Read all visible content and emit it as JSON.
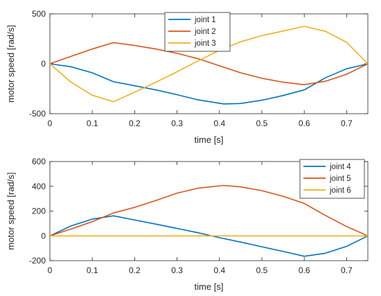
{
  "chart_data": [
    {
      "type": "line",
      "title": "",
      "xlabel": "time  [s]",
      "ylabel": "motor speed  [rad/s]",
      "xlim": [
        0,
        0.75
      ],
      "ylim": [
        -500,
        500
      ],
      "xticks": [
        "0",
        "0.1",
        "0.2",
        "0.3",
        "0.4",
        "0.5",
        "0.6",
        "0.7"
      ],
      "yticks": [
        "-500",
        "0",
        "500"
      ],
      "legend_position": "top-center",
      "grid": false,
      "series": [
        {
          "name": "joint 1",
          "color": "#0072BD",
          "points": [
            [
              0,
              0
            ],
            [
              0.05,
              -30
            ],
            [
              0.1,
              -90
            ],
            [
              0.15,
              -180
            ],
            [
              0.2,
              -220
            ],
            [
              0.25,
              -262
            ],
            [
              0.3,
              -310
            ],
            [
              0.35,
              -362
            ],
            [
              0.41,
              -402
            ],
            [
              0.45,
              -398
            ],
            [
              0.5,
              -365
            ],
            [
              0.55,
              -318
            ],
            [
              0.6,
              -262
            ],
            [
              0.65,
              -140
            ],
            [
              0.7,
              -50
            ],
            [
              0.75,
              0
            ]
          ]
        },
        {
          "name": "joint 2",
          "color": "#D95319",
          "points": [
            [
              0,
              0
            ],
            [
              0.05,
              75
            ],
            [
              0.1,
              148
            ],
            [
              0.15,
              212
            ],
            [
              0.2,
              183
            ],
            [
              0.25,
              148
            ],
            [
              0.3,
              105
            ],
            [
              0.35,
              50
            ],
            [
              0.4,
              -20
            ],
            [
              0.45,
              -90
            ],
            [
              0.5,
              -145
            ],
            [
              0.55,
              -185
            ],
            [
              0.6,
              -210
            ],
            [
              0.65,
              -175
            ],
            [
              0.7,
              -105
            ],
            [
              0.75,
              0
            ]
          ]
        },
        {
          "name": "joint 3",
          "color": "#EDB120",
          "points": [
            [
              0,
              0
            ],
            [
              0.05,
              -185
            ],
            [
              0.1,
              -315
            ],
            [
              0.15,
              -380
            ],
            [
              0.2,
              -285
            ],
            [
              0.25,
              -185
            ],
            [
              0.3,
              -80
            ],
            [
              0.35,
              30
            ],
            [
              0.4,
              135
            ],
            [
              0.45,
              220
            ],
            [
              0.5,
              282
            ],
            [
              0.55,
              328
            ],
            [
              0.6,
              375
            ],
            [
              0.65,
              325
            ],
            [
              0.7,
              215
            ],
            [
              0.75,
              0
            ]
          ]
        }
      ]
    },
    {
      "type": "line",
      "title": "",
      "xlabel": "time  [s]",
      "ylabel": "motor speed  [rad/s]",
      "xlim": [
        0,
        0.75
      ],
      "ylim": [
        -200,
        600
      ],
      "xticks": [
        "0",
        "0.1",
        "0.2",
        "0.3",
        "0.4",
        "0.5",
        "0.6",
        "0.7"
      ],
      "yticks": [
        "-200",
        "0",
        "200",
        "400",
        "600"
      ],
      "legend_position": "top-right",
      "grid": false,
      "series": [
        {
          "name": "joint 4",
          "color": "#0072BD",
          "points": [
            [
              0,
              0
            ],
            [
              0.05,
              80
            ],
            [
              0.1,
              135
            ],
            [
              0.15,
              162
            ],
            [
              0.2,
              128
            ],
            [
              0.25,
              95
            ],
            [
              0.3,
              60
            ],
            [
              0.35,
              25
            ],
            [
              0.4,
              -15
            ],
            [
              0.45,
              -50
            ],
            [
              0.5,
              -88
            ],
            [
              0.55,
              -125
            ],
            [
              0.6,
              -165
            ],
            [
              0.65,
              -140
            ],
            [
              0.7,
              -85
            ],
            [
              0.75,
              0
            ]
          ]
        },
        {
          "name": "joint 5",
          "color": "#D95319",
          "points": [
            [
              0,
              0
            ],
            [
              0.05,
              55
            ],
            [
              0.1,
              115
            ],
            [
              0.15,
              185
            ],
            [
              0.2,
              230
            ],
            [
              0.25,
              285
            ],
            [
              0.3,
              345
            ],
            [
              0.35,
              385
            ],
            [
              0.41,
              407
            ],
            [
              0.45,
              395
            ],
            [
              0.5,
              365
            ],
            [
              0.55,
              320
            ],
            [
              0.6,
              262
            ],
            [
              0.65,
              165
            ],
            [
              0.7,
              75
            ],
            [
              0.75,
              0
            ]
          ]
        },
        {
          "name": "joint 6",
          "color": "#EDB120",
          "points": [
            [
              0,
              0
            ],
            [
              0.75,
              0
            ]
          ]
        }
      ]
    }
  ]
}
